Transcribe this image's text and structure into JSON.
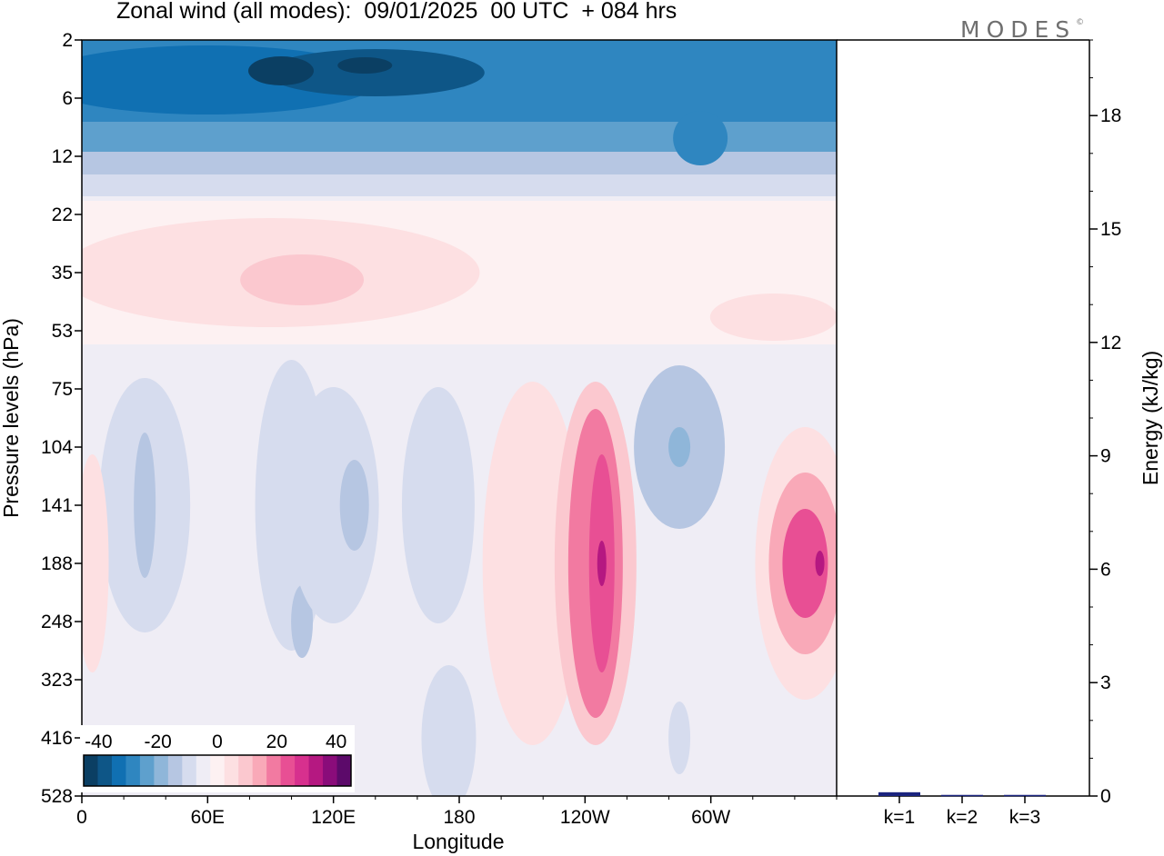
{
  "title": "Zonal wind (all modes):  09/01/2025  00 UTC  + 084 hrs",
  "logo": "MODES",
  "logo_mark": "©",
  "chart_data": [
    {
      "type": "heatmap",
      "title": "Zonal wind (all modes):  09/01/2025  00 UTC  + 084 hrs",
      "xlabel": "Longitude",
      "ylabel": "Pressure levels (hPa)",
      "x_ticks": [
        "0",
        "60E",
        "120E",
        "180",
        "120W",
        "60W"
      ],
      "x_tick_values": [
        0,
        60,
        120,
        180,
        240,
        300
      ],
      "xlim": [
        0,
        360
      ],
      "y_levels": [
        "2",
        "6",
        "12",
        "22",
        "35",
        "53",
        "75",
        "104",
        "141",
        "188",
        "248",
        "323",
        "416",
        "528"
      ],
      "y_scale": "categorical-levels",
      "colorbar": {
        "tick_labels": [
          "-40",
          "-20",
          "0",
          "20",
          "40"
        ],
        "tick_values": [
          -40,
          -20,
          0,
          20,
          40
        ],
        "range": [
          -45,
          45
        ],
        "step": 5,
        "colors": [
          "#0b3f63",
          "#0e5687",
          "#1070b2",
          "#2f86c0",
          "#5ea0cd",
          "#8fb6d9",
          "#b6c6e2",
          "#d6dcee",
          "#efedf5",
          "#fdf1f2",
          "#fde0e2",
          "#fbc8cf",
          "#f9a9b8",
          "#f27aa1",
          "#e84f94",
          "#d7308e",
          "#b51881",
          "#8a0c7a",
          "#5c0a6a"
        ]
      },
      "features": [
        {
          "region": "upper stratosphere (2-12 hPa)",
          "longitudes": "all",
          "value": -30
        },
        {
          "region": "core jet near 2-6 hPa",
          "longitude": 95,
          "value": -40
        },
        {
          "region": "core jet near 2-6 hPa",
          "longitude": 140,
          "value": -40
        },
        {
          "region": "22-53 hPa band",
          "longitudes": "all",
          "value": 5
        },
        {
          "region": "35-53 hPa maximum",
          "longitude": 105,
          "value": 12
        },
        {
          "region": "upper troposphere maximum",
          "longitude": 245,
          "value": 35
        },
        {
          "region": "upper troposphere maximum",
          "longitude": 345,
          "value": 30
        },
        {
          "region": "upper troposphere minimum",
          "longitude": 285,
          "value": -20
        }
      ]
    },
    {
      "type": "bar",
      "ylabel": "Energy (kJ/kg)",
      "ylim": [
        0,
        20
      ],
      "y_ticks": [
        0,
        3,
        6,
        9,
        12,
        15,
        18
      ],
      "categories": [
        "k=1",
        "k=2",
        "k=3"
      ],
      "values": [
        0.1,
        0.03,
        0.03
      ]
    }
  ]
}
